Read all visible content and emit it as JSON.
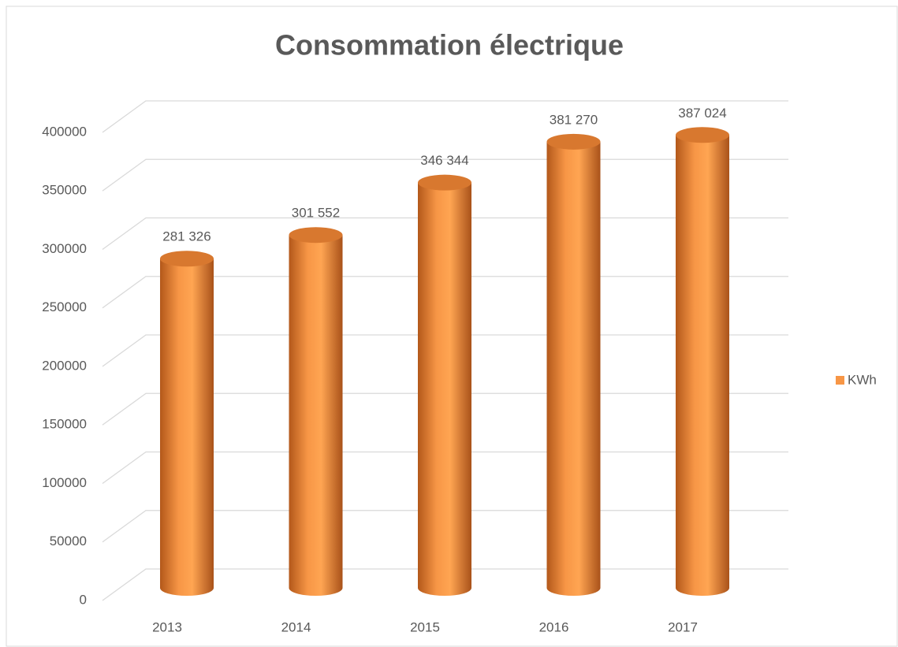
{
  "chart_data": {
    "type": "bar3d",
    "title": "Consommation électrique",
    "categories": [
      "2013",
      "2014",
      "2015",
      "2016",
      "2017"
    ],
    "series": [
      {
        "name": "KWh",
        "color": "#f79646",
        "values": [
          281326,
          301552,
          346344,
          381270,
          387024
        ],
        "value_labels": [
          "281 326",
          "301 552",
          "346 344",
          "381 270",
          "387 024"
        ]
      }
    ],
    "ylim": [
      0,
      400000
    ],
    "yticks": [
      0,
      50000,
      100000,
      150000,
      200000,
      250000,
      300000,
      350000,
      400000
    ],
    "grid": true,
    "legend": "right"
  }
}
